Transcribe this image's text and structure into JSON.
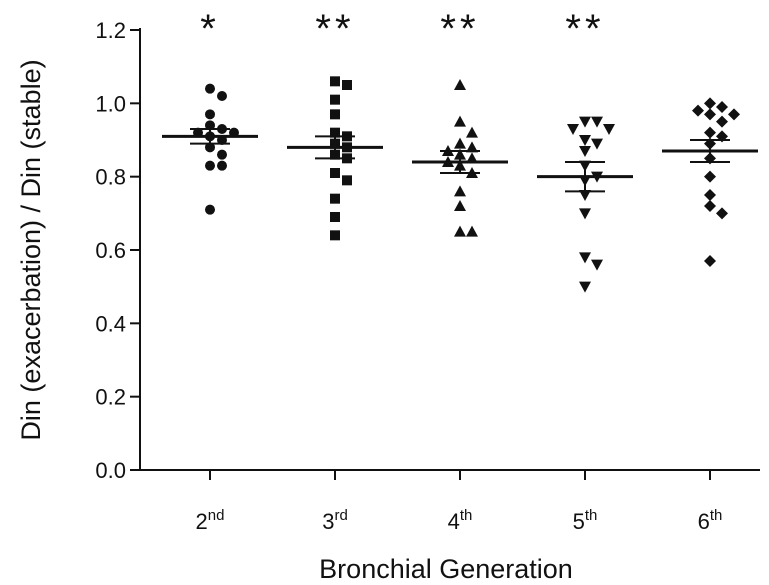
{
  "chart_data": {
    "type": "scatter",
    "title": "",
    "xlabel": "Bronchial Generation",
    "ylabel": "Din (exacerbation) / Din (stable)",
    "ylim": [
      0,
      1.2
    ],
    "yticks": [
      "0.0",
      "0.2",
      "0.4",
      "0.6",
      "0.8",
      "1.0",
      "1.2"
    ],
    "grid": false,
    "categories": [
      {
        "base": "2",
        "sup": "nd"
      },
      {
        "base": "3",
        "sup": "rd"
      },
      {
        "base": "4",
        "sup": "th"
      },
      {
        "base": "5",
        "sup": "th"
      },
      {
        "base": "6",
        "sup": "th"
      }
    ],
    "series": [
      {
        "marker": "circle",
        "significance": "*",
        "mean": 0.91,
        "sem": 0.02,
        "values": [
          1.04,
          1.02,
          0.97,
          0.94,
          0.93,
          0.92,
          0.92,
          0.91,
          0.9,
          0.88,
          0.86,
          0.83,
          0.83,
          0.71
        ]
      },
      {
        "marker": "square",
        "significance": "**",
        "mean": 0.88,
        "sem": 0.03,
        "values": [
          1.06,
          1.05,
          1.01,
          0.97,
          0.92,
          0.91,
          0.89,
          0.88,
          0.86,
          0.85,
          0.81,
          0.79,
          0.74,
          0.69,
          0.64
        ]
      },
      {
        "marker": "triangle-up",
        "significance": "**",
        "mean": 0.84,
        "sem": 0.03,
        "values": [
          1.05,
          0.95,
          0.92,
          0.89,
          0.88,
          0.87,
          0.86,
          0.85,
          0.84,
          0.83,
          0.81,
          0.76,
          0.72,
          0.65,
          0.65
        ]
      },
      {
        "marker": "triangle-down",
        "significance": "**",
        "mean": 0.8,
        "sem": 0.04,
        "values": [
          0.95,
          0.95,
          0.93,
          0.93,
          0.9,
          0.89,
          0.87,
          0.83,
          0.8,
          0.79,
          0.75,
          0.7,
          0.58,
          0.56,
          0.5
        ]
      },
      {
        "marker": "diamond",
        "significance": "",
        "mean": 0.87,
        "sem": 0.03,
        "values": [
          1.0,
          0.99,
          0.98,
          0.97,
          0.97,
          0.95,
          0.92,
          0.91,
          0.89,
          0.85,
          0.8,
          0.75,
          0.72,
          0.7,
          0.57
        ]
      }
    ]
  }
}
